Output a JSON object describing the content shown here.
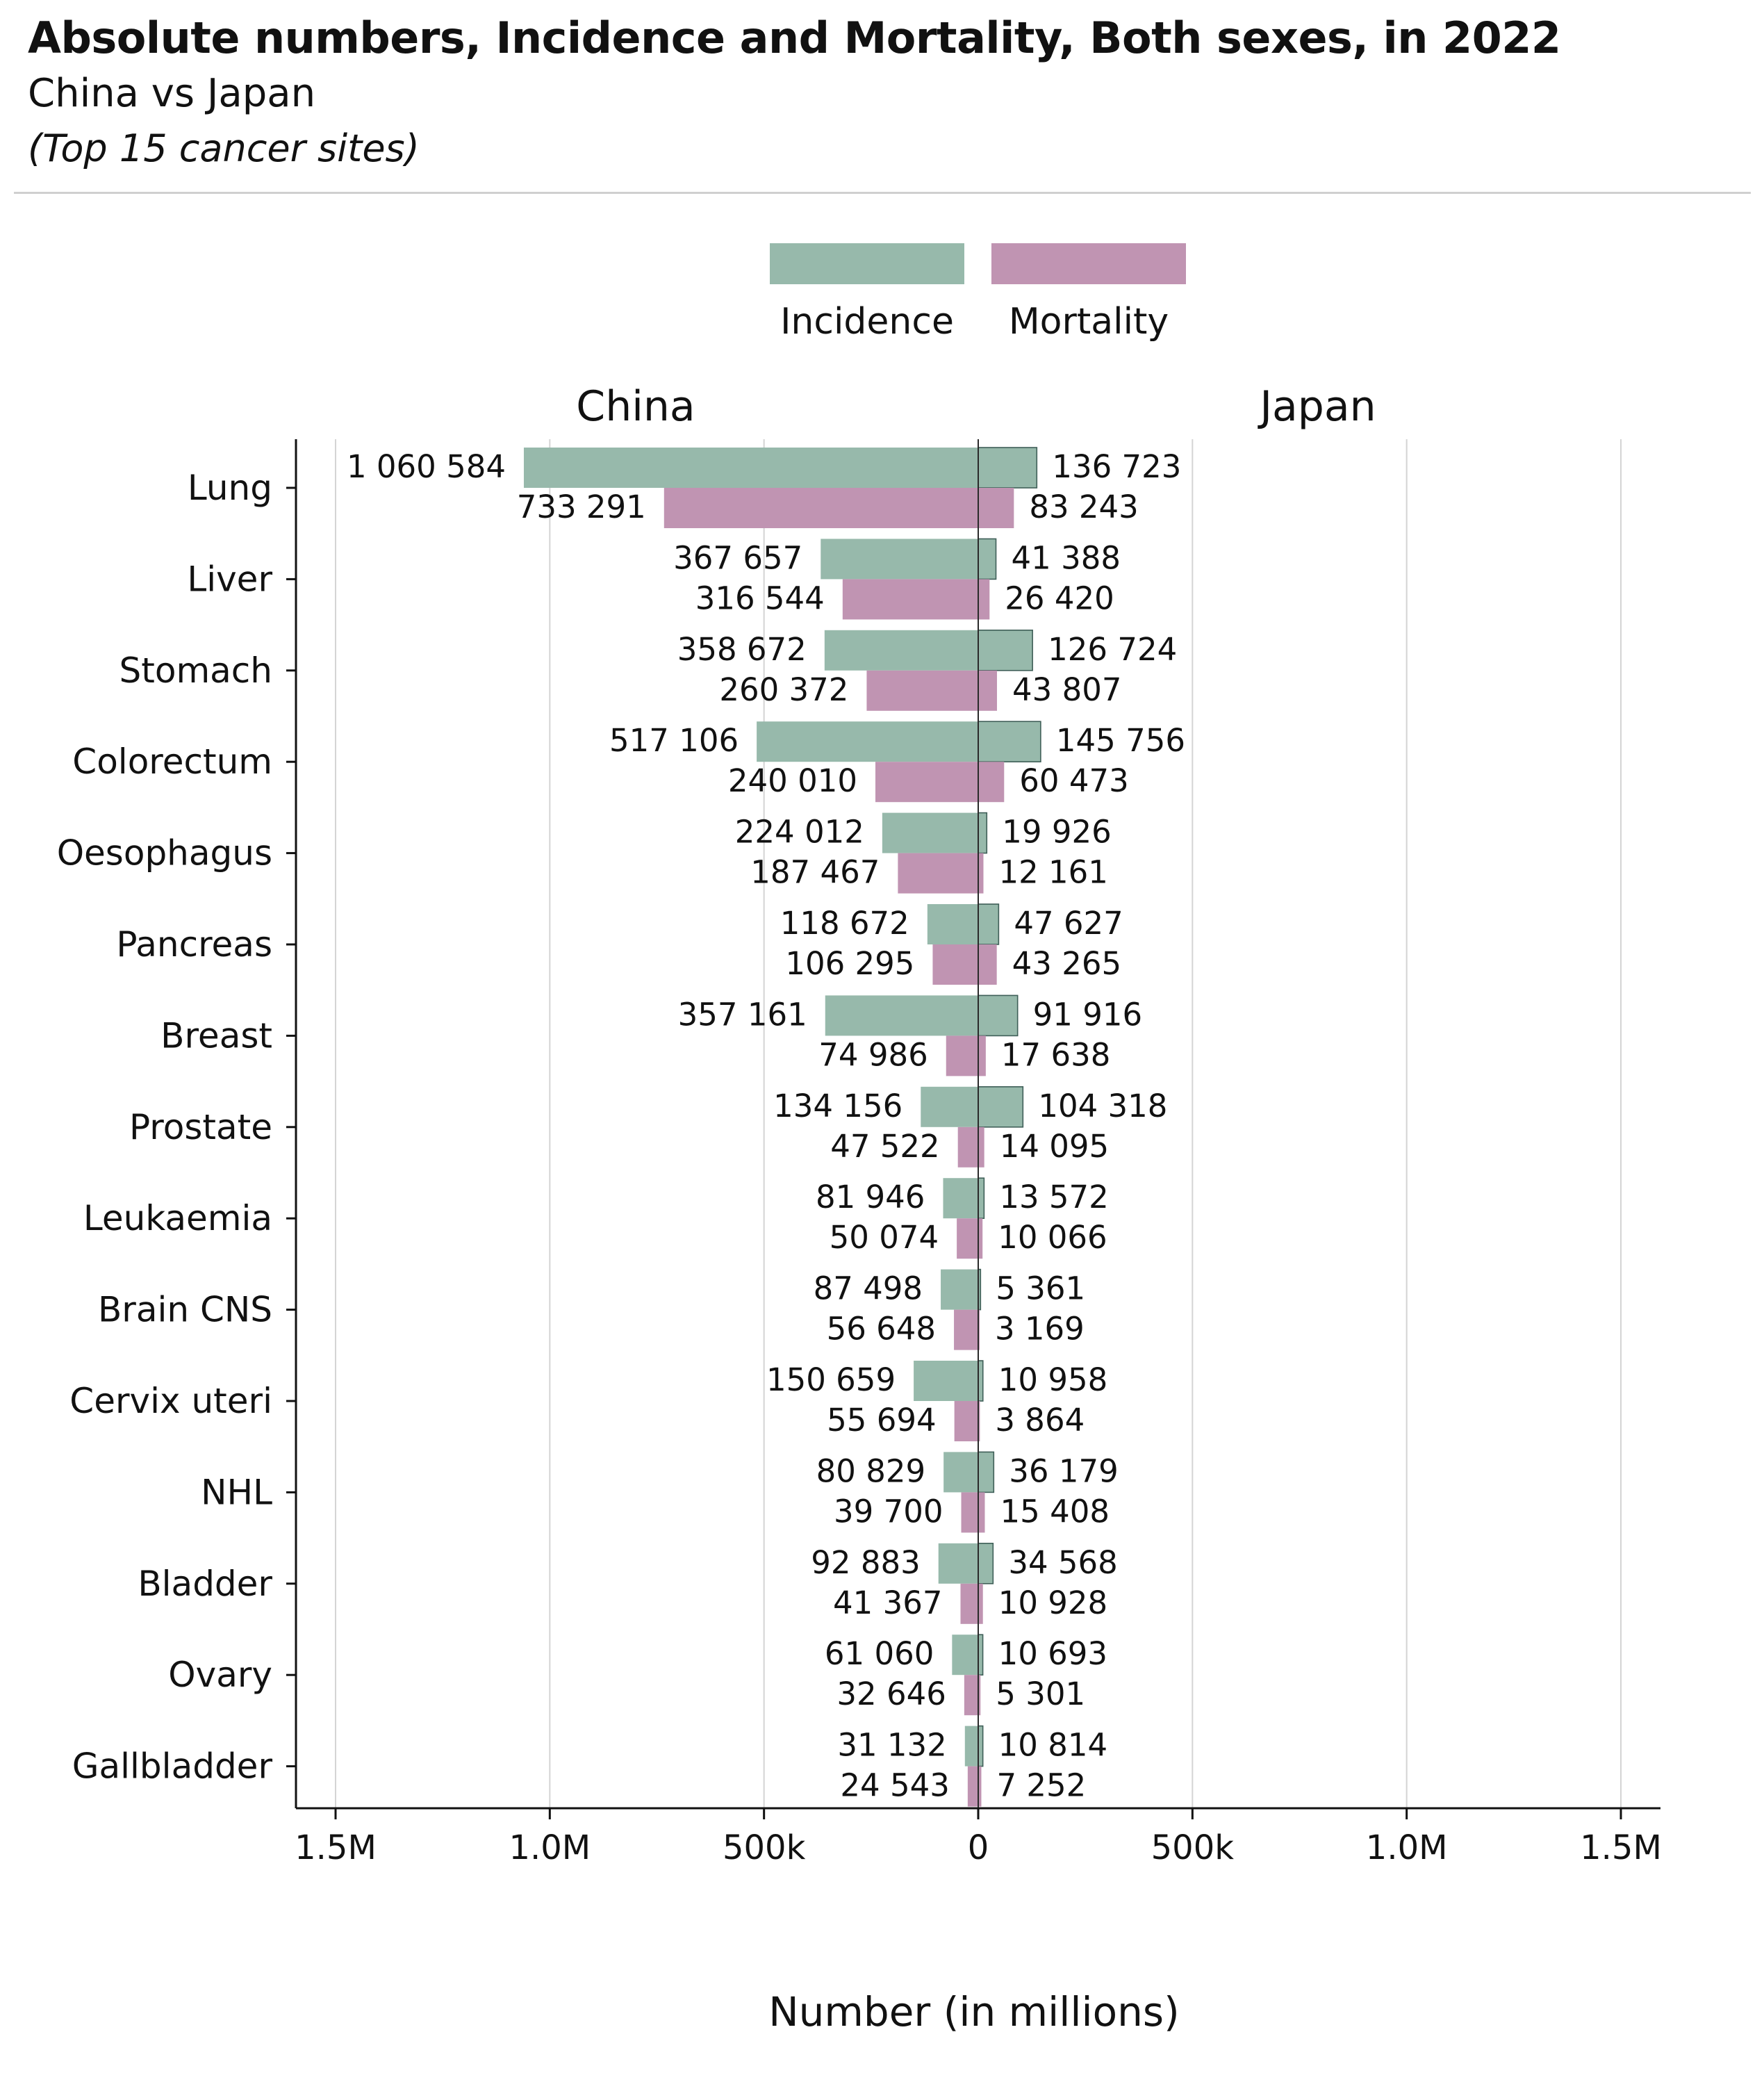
{
  "header": {
    "title": "Absolute numbers, Incidence and Mortality, Both sexes, in 2022",
    "subtitle": "China vs Japan",
    "note": "(Top 15 cancer sites)"
  },
  "legend": {
    "incidence_label": "Incidence",
    "mortality_label": "Mortality"
  },
  "colors": {
    "incidence": "#97b9ab",
    "mortality": "#c094b2"
  },
  "chart_data": {
    "type": "bar",
    "orientation": "horizontal-diverging",
    "title": "Absolute numbers, Incidence and Mortality, Both sexes, in 2022",
    "subtitle": "China vs Japan",
    "xlabel": "Number (in millions)",
    "xlim": [
      -1500000,
      1500000
    ],
    "x_ticks": [
      {
        "value": -1500000,
        "label": "1.5M"
      },
      {
        "value": -1000000,
        "label": "1.0M"
      },
      {
        "value": -500000,
        "label": "500k"
      },
      {
        "value": 0,
        "label": "0"
      },
      {
        "value": 500000,
        "label": "500k"
      },
      {
        "value": 1000000,
        "label": "1.0M"
      },
      {
        "value": 1500000,
        "label": "1.5M"
      }
    ],
    "grid": true,
    "legend_position": "top-center",
    "panels": [
      "China",
      "Japan"
    ],
    "categories": [
      "Lung",
      "Liver",
      "Stomach",
      "Colorectum",
      "Oesophagus",
      "Pancreas",
      "Breast",
      "Prostate",
      "Leukaemia",
      "Brain CNS",
      "Cervix uteri",
      "NHL",
      "Bladder",
      "Ovary",
      "Gallbladder"
    ],
    "series": [
      {
        "name": "Incidence",
        "panel": "China",
        "values": [
          1060584,
          367657,
          358672,
          517106,
          224012,
          118672,
          357161,
          134156,
          81946,
          87498,
          150659,
          80829,
          92883,
          61060,
          31132
        ],
        "labels": [
          "1 060 584",
          "367 657",
          "358 672",
          "517 106",
          "224 012",
          "118 672",
          "357 161",
          "134 156",
          "81 946",
          "87 498",
          "150 659",
          "80 829",
          "92 883",
          "61 060",
          "31 132"
        ]
      },
      {
        "name": "Mortality",
        "panel": "China",
        "values": [
          733291,
          316544,
          260372,
          240010,
          187467,
          106295,
          74986,
          47522,
          50074,
          56648,
          55694,
          39700,
          41367,
          32646,
          24543
        ],
        "labels": [
          "733 291",
          "316 544",
          "260 372",
          "240 010",
          "187 467",
          "106 295",
          "74 986",
          "47 522",
          "50 074",
          "56 648",
          "55 694",
          "39 700",
          "41 367",
          "32 646",
          "24 543"
        ]
      },
      {
        "name": "Incidence",
        "panel": "Japan",
        "values": [
          136723,
          41388,
          126724,
          145756,
          19926,
          47627,
          91916,
          104318,
          13572,
          5361,
          10958,
          36179,
          34568,
          10693,
          10814
        ],
        "labels": [
          "136 723",
          "41 388",
          "126 724",
          "145 756",
          "19 926",
          "47 627",
          "91 916",
          "104 318",
          "13 572",
          "5 361",
          "10 958",
          "36 179",
          "34 568",
          "10 693",
          "10 814"
        ]
      },
      {
        "name": "Mortality",
        "panel": "Japan",
        "values": [
          83243,
          26420,
          43807,
          60473,
          12161,
          43265,
          17638,
          14095,
          10066,
          3169,
          3864,
          15408,
          10928,
          5301,
          7252
        ],
        "labels": [
          "83 243",
          "26 420",
          "43 807",
          "60 473",
          "12 161",
          "43 265",
          "17 638",
          "14 095",
          "10 066",
          "3 169",
          "3 864",
          "15 408",
          "10 928",
          "5 301",
          "7 252"
        ]
      }
    ]
  }
}
